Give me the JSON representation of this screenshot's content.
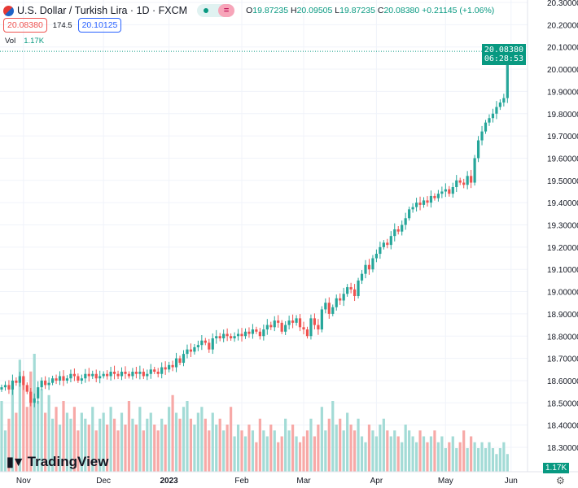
{
  "header": {
    "symbol_title": "U.S. Dollar / Turkish Lira · 1D · FXCM",
    "market_status_icon": "market-open-dot",
    "ohlc": {
      "o_label": "O",
      "o": "19.87235",
      "h_label": "H",
      "h": "20.09505",
      "l_label": "L",
      "l": "19.87235",
      "c_label": "C",
      "c": "20.08380",
      "change": "+0.21145 (+1.06%)"
    },
    "sell_price": "20.08380",
    "spread": "174.5",
    "buy_price": "20.10125",
    "vol_label": "Vol",
    "vol_value": "1.17K"
  },
  "last_price_tag": {
    "price": "20.08380",
    "countdown": "06:28:53"
  },
  "volume_tag": "1.17K",
  "logo_text": "TradingView",
  "colors": {
    "up": "#26a69a",
    "down": "#ef5350",
    "up_vol": "#a3dbd6",
    "down_vol": "#f7a9a7",
    "grid": "#f0f3fa"
  },
  "chart_data": {
    "type": "candlestick",
    "title": "U.S. Dollar / Turkish Lira · 1D · FXCM",
    "ylim": [
      18.3,
      20.3
    ],
    "y_ticks": [
      "20.30000",
      "20.20000",
      "20.10000",
      "20.00000",
      "19.90000",
      "19.80000",
      "19.70000",
      "19.60000",
      "19.50000",
      "19.40000",
      "19.30000",
      "19.20000",
      "19.10000",
      "19.00000",
      "18.90000",
      "18.80000",
      "18.70000",
      "18.60000",
      "18.50000",
      "18.40000",
      "18.30000"
    ],
    "x_ticks": [
      {
        "label": "Nov",
        "index": 6
      },
      {
        "label": "Dec",
        "index": 28
      },
      {
        "label": "2023",
        "index": 46
      },
      {
        "label": "Feb",
        "index": 66
      },
      {
        "label": "Mar",
        "index": 83
      },
      {
        "label": "Apr",
        "index": 103
      },
      {
        "label": "May",
        "index": 122
      },
      {
        "label": "Jun",
        "index": 140
      }
    ],
    "open_first": 18.56,
    "close": [
      18.57,
      18.58,
      18.56,
      18.6,
      18.59,
      18.62,
      18.58,
      18.55,
      18.5,
      18.52,
      18.57,
      18.6,
      18.58,
      18.59,
      18.61,
      18.6,
      18.62,
      18.6,
      18.61,
      18.63,
      18.62,
      18.6,
      18.61,
      18.63,
      18.62,
      18.63,
      18.61,
      18.62,
      18.63,
      18.62,
      18.64,
      18.63,
      18.62,
      18.64,
      18.63,
      18.62,
      18.64,
      18.63,
      18.64,
      18.62,
      18.63,
      18.65,
      18.64,
      18.63,
      18.66,
      18.65,
      18.67,
      18.66,
      18.7,
      18.68,
      18.72,
      18.74,
      18.73,
      18.75,
      18.76,
      18.78,
      18.77,
      18.74,
      18.79,
      18.8,
      18.79,
      18.81,
      18.8,
      18.79,
      18.8,
      18.81,
      18.8,
      18.82,
      18.81,
      18.83,
      18.82,
      18.8,
      18.83,
      18.85,
      18.84,
      18.87,
      18.86,
      18.82,
      18.85,
      18.87,
      18.86,
      18.88,
      18.84,
      18.83,
      18.8,
      18.88,
      18.85,
      18.83,
      18.92,
      18.95,
      18.9,
      18.93,
      18.97,
      18.96,
      18.99,
      19.02,
      19.01,
      18.98,
      19.05,
      19.08,
      19.12,
      19.1,
      19.15,
      19.17,
      19.2,
      19.22,
      19.21,
      19.25,
      19.28,
      19.27,
      19.3,
      19.33,
      19.37,
      19.38,
      19.4,
      19.39,
      19.41,
      19.4,
      19.43,
      19.42,
      19.44,
      19.45,
      19.46,
      19.44,
      19.47,
      19.5,
      19.49,
      19.48,
      19.52,
      19.49,
      19.6,
      19.68,
      19.72,
      19.76,
      19.78,
      19.8,
      19.83,
      19.85,
      19.87,
      20.08
    ],
    "volume_relative": [
      60,
      35,
      45,
      70,
      50,
      95,
      80,
      55,
      85,
      100,
      60,
      70,
      50,
      65,
      45,
      55,
      40,
      60,
      50,
      45,
      55,
      35,
      50,
      45,
      40,
      55,
      35,
      45,
      50,
      40,
      55,
      45,
      35,
      50,
      40,
      60,
      45,
      40,
      55,
      35,
      45,
      50,
      40,
      35,
      45,
      40,
      55,
      65,
      50,
      45,
      55,
      60,
      45,
      40,
      50,
      55,
      45,
      35,
      50,
      40,
      45,
      35,
      40,
      55,
      30,
      40,
      35,
      30,
      40,
      35,
      25,
      45,
      35,
      30,
      40,
      35,
      25,
      30,
      45,
      35,
      40,
      30,
      25,
      30,
      35,
      45,
      30,
      40,
      55,
      35,
      45,
      60,
      40,
      45,
      35,
      50,
      40,
      35,
      45,
      30,
      25,
      40,
      35,
      30,
      40,
      45,
      35,
      30,
      35,
      30,
      25,
      40,
      35,
      30,
      25,
      35,
      30,
      25,
      30,
      35,
      25,
      30,
      20,
      25,
      30,
      20,
      25,
      35,
      20,
      30,
      25,
      20,
      25,
      20,
      25,
      20,
      15,
      20,
      25,
      15
    ]
  }
}
